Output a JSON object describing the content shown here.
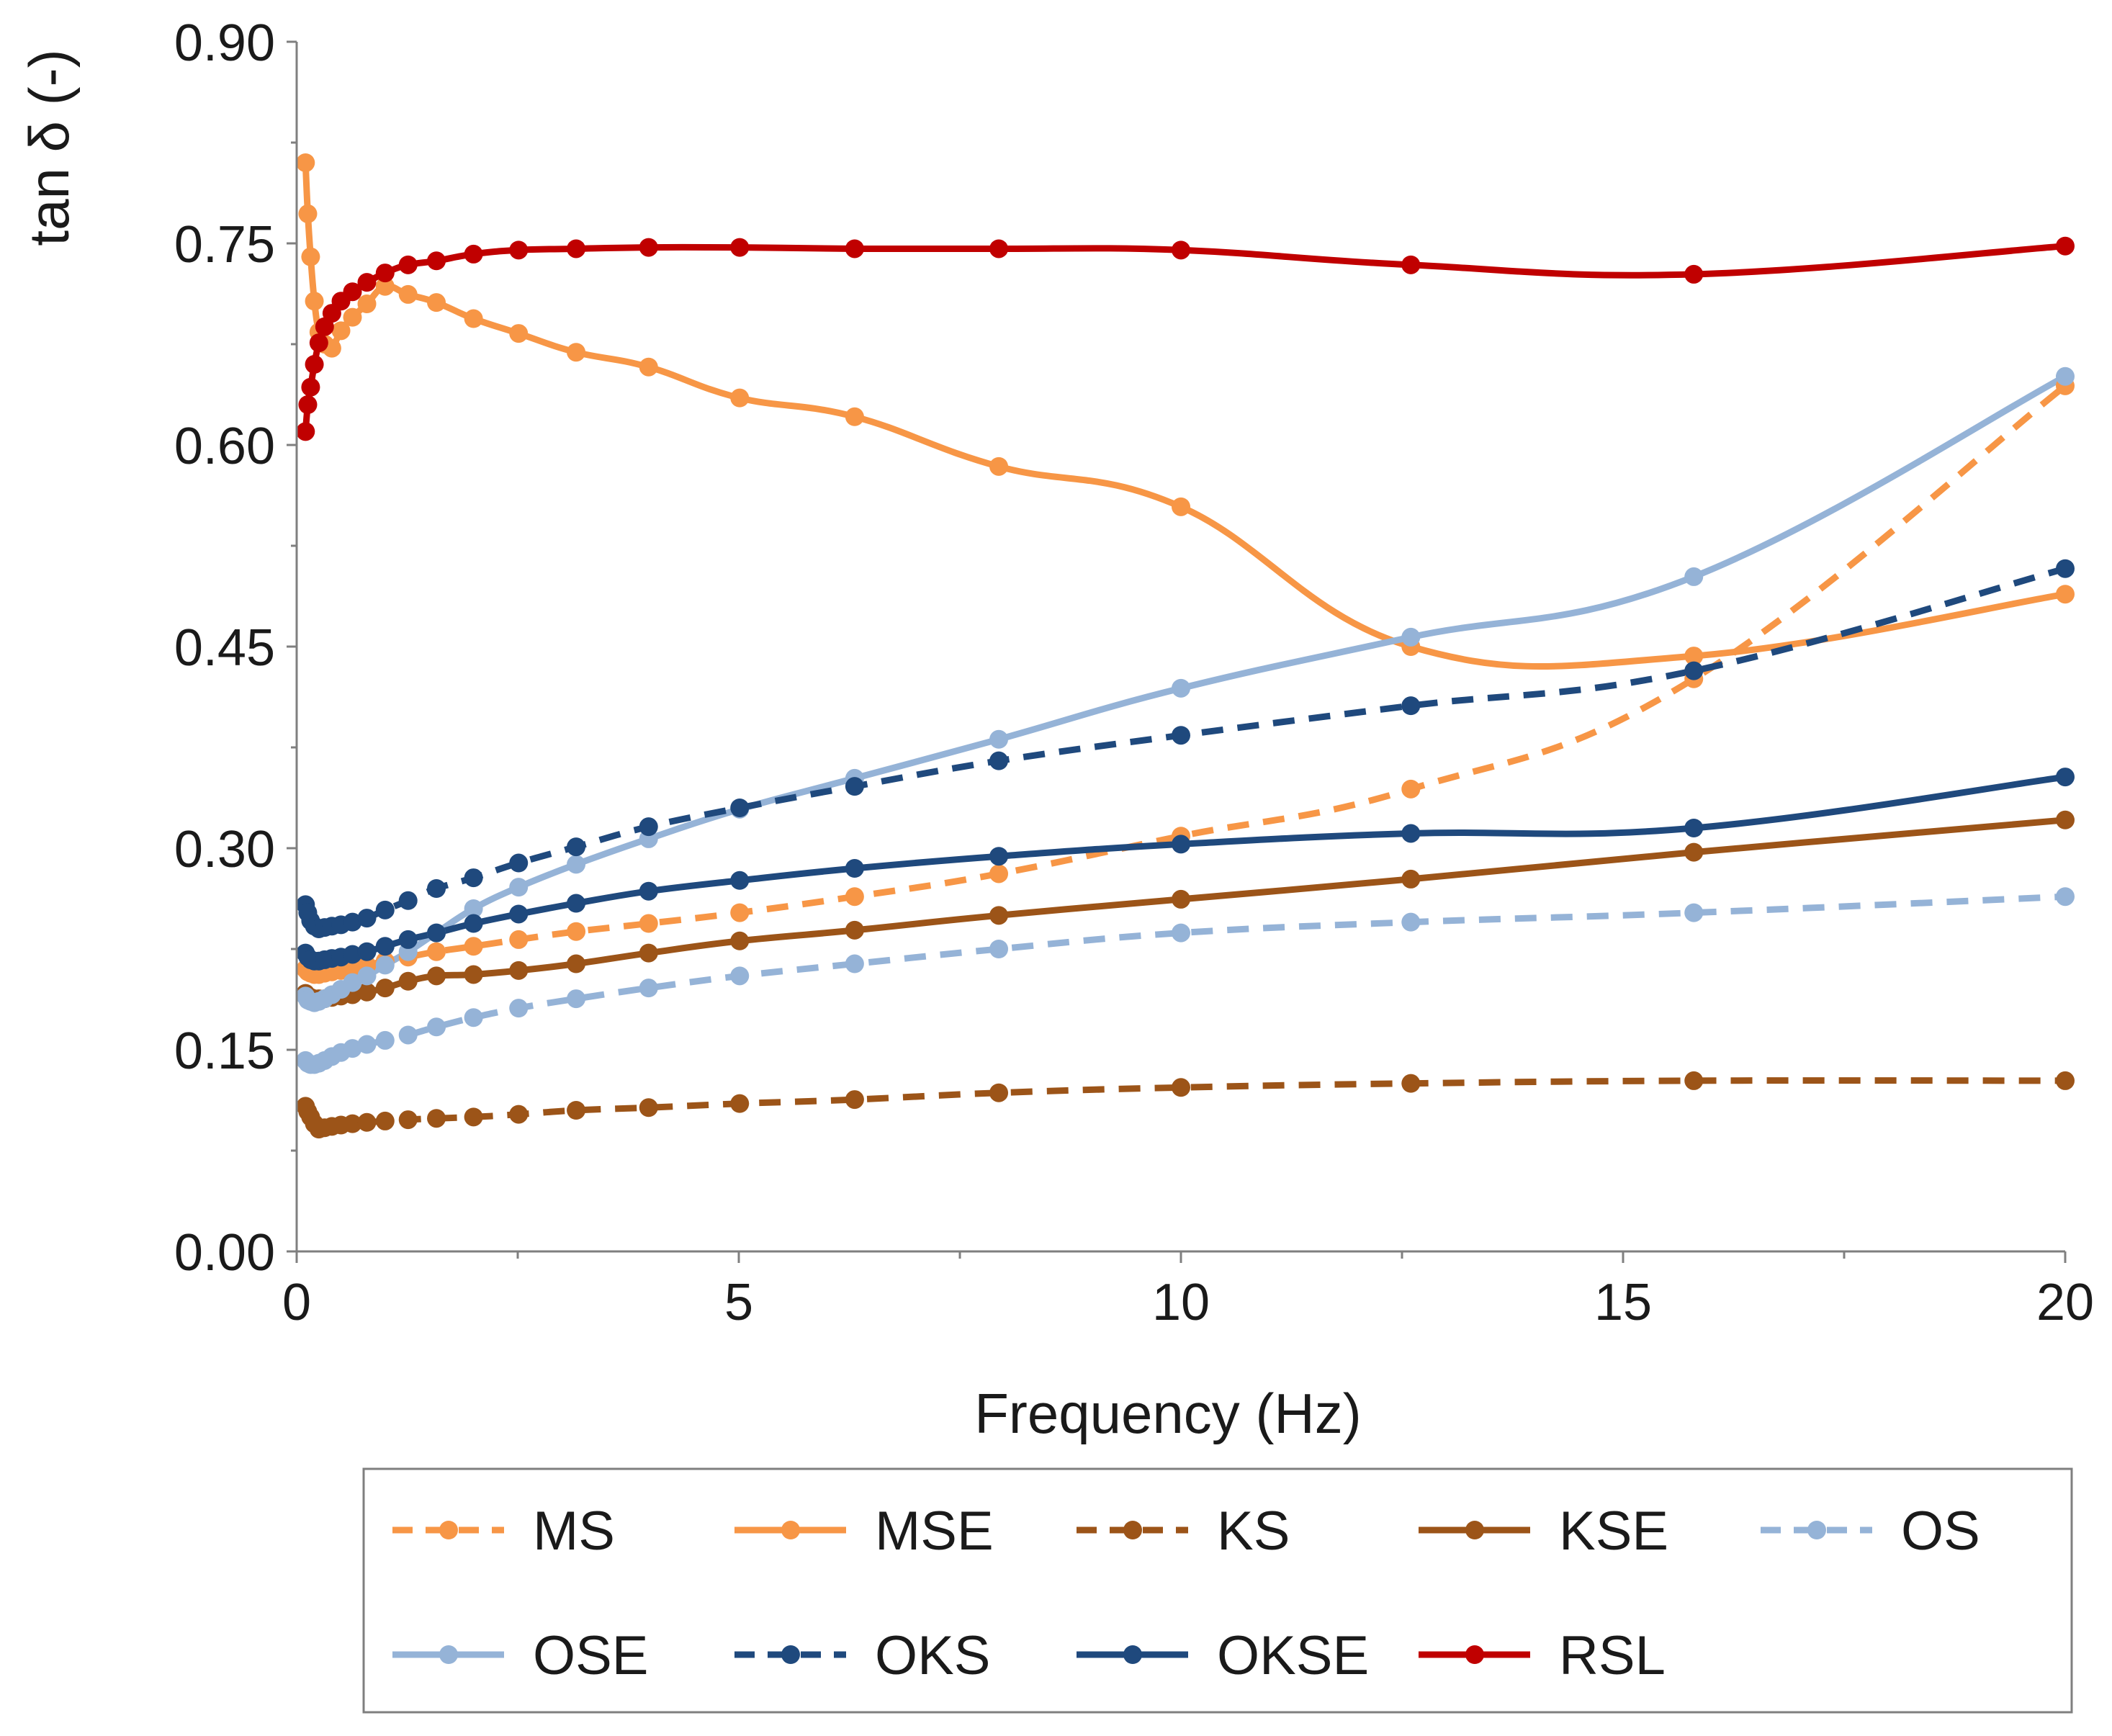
{
  "chart_data": {
    "type": "line",
    "title": "",
    "xlabel": "Frequency (Hz)",
    "ylabel": "tan δ (-)",
    "xlim": [
      0,
      20
    ],
    "ylim": [
      0,
      0.9
    ],
    "x_ticks": [
      "0",
      "5",
      "10",
      "15",
      "20"
    ],
    "y_ticks": [
      "0.00",
      "0.15",
      "0.30",
      "0.45",
      "0.60",
      "0.75",
      "0.90"
    ],
    "legend_position": "bottom",
    "x": [
      0.1,
      0.126,
      0.158,
      0.2,
      0.251,
      0.316,
      0.398,
      0.501,
      0.631,
      0.794,
      1.0,
      1.26,
      1.58,
      2.0,
      2.51,
      3.16,
      3.98,
      5.01,
      6.31,
      7.94,
      10.0,
      12.6,
      15.8,
      20.0
    ],
    "series": [
      {
        "name": "MS",
        "style": "dashed",
        "color": "#F79646",
        "values": [
          0.21,
          0.208,
          0.207,
          0.206,
          0.206,
          0.207,
          0.208,
          0.209,
          0.211,
          0.213,
          0.216,
          0.219,
          0.223,
          0.227,
          0.232,
          0.238,
          0.244,
          0.252,
          0.264,
          0.281,
          0.309,
          0.344,
          0.426,
          0.644
        ]
      },
      {
        "name": "MSE",
        "style": "solid",
        "color": "#F79646",
        "values": [
          0.81,
          0.772,
          0.74,
          0.707,
          0.684,
          0.675,
          0.672,
          0.685,
          0.695,
          0.705,
          0.718,
          0.712,
          0.706,
          0.694,
          0.683,
          0.669,
          0.658,
          0.635,
          0.621,
          0.584,
          0.554,
          0.45,
          0.443,
          0.489
        ]
      },
      {
        "name": "KS",
        "style": "dashed",
        "color": "#9C5418",
        "values": [
          0.108,
          0.104,
          0.1,
          0.095,
          0.091,
          0.092,
          0.093,
          0.094,
          0.095,
          0.096,
          0.097,
          0.098,
          0.099,
          0.1,
          0.102,
          0.105,
          0.107,
          0.11,
          0.113,
          0.118,
          0.122,
          0.125,
          0.127,
          0.127
        ]
      },
      {
        "name": "KSE",
        "style": "solid",
        "color": "#9C5418",
        "values": [
          0.192,
          0.19,
          0.189,
          0.188,
          0.188,
          0.188,
          0.189,
          0.19,
          0.191,
          0.193,
          0.196,
          0.201,
          0.205,
          0.206,
          0.209,
          0.214,
          0.222,
          0.231,
          0.239,
          0.25,
          0.262,
          0.277,
          0.297,
          0.321
        ]
      },
      {
        "name": "OS",
        "style": "dashed",
        "color": "#95B3D7",
        "values": [
          0.142,
          0.14,
          0.139,
          0.139,
          0.14,
          0.142,
          0.145,
          0.148,
          0.151,
          0.154,
          0.157,
          0.161,
          0.167,
          0.174,
          0.181,
          0.188,
          0.196,
          0.205,
          0.214,
          0.225,
          0.237,
          0.245,
          0.252,
          0.264
        ]
      },
      {
        "name": "OSE",
        "style": "solid",
        "color": "#95B3D7",
        "values": [
          0.19,
          0.187,
          0.186,
          0.185,
          0.186,
          0.188,
          0.191,
          0.195,
          0.2,
          0.205,
          0.213,
          0.223,
          0.237,
          0.255,
          0.271,
          0.288,
          0.307,
          0.329,
          0.352,
          0.381,
          0.419,
          0.457,
          0.502,
          0.651
        ]
      },
      {
        "name": "OKS",
        "style": "dashed",
        "color": "#1F497D",
        "values": [
          0.258,
          0.252,
          0.246,
          0.242,
          0.24,
          0.241,
          0.242,
          0.243,
          0.245,
          0.248,
          0.254,
          0.261,
          0.27,
          0.278,
          0.289,
          0.301,
          0.316,
          0.33,
          0.346,
          0.365,
          0.384,
          0.406,
          0.432,
          0.508
        ]
      },
      {
        "name": "OKSE",
        "style": "solid",
        "color": "#1F497D",
        "values": [
          0.222,
          0.219,
          0.217,
          0.216,
          0.216,
          0.217,
          0.218,
          0.219,
          0.221,
          0.223,
          0.227,
          0.232,
          0.237,
          0.244,
          0.251,
          0.259,
          0.268,
          0.276,
          0.285,
          0.294,
          0.303,
          0.311,
          0.315,
          0.353
        ]
      },
      {
        "name": "RSL",
        "style": "solid",
        "color": "#C00000",
        "values": [
          0.61,
          0.63,
          0.643,
          0.66,
          0.676,
          0.688,
          0.698,
          0.707,
          0.714,
          0.721,
          0.728,
          0.734,
          0.737,
          0.742,
          0.745,
          0.746,
          0.747,
          0.747,
          0.746,
          0.746,
          0.745,
          0.734,
          0.727,
          0.748
        ]
      }
    ]
  }
}
